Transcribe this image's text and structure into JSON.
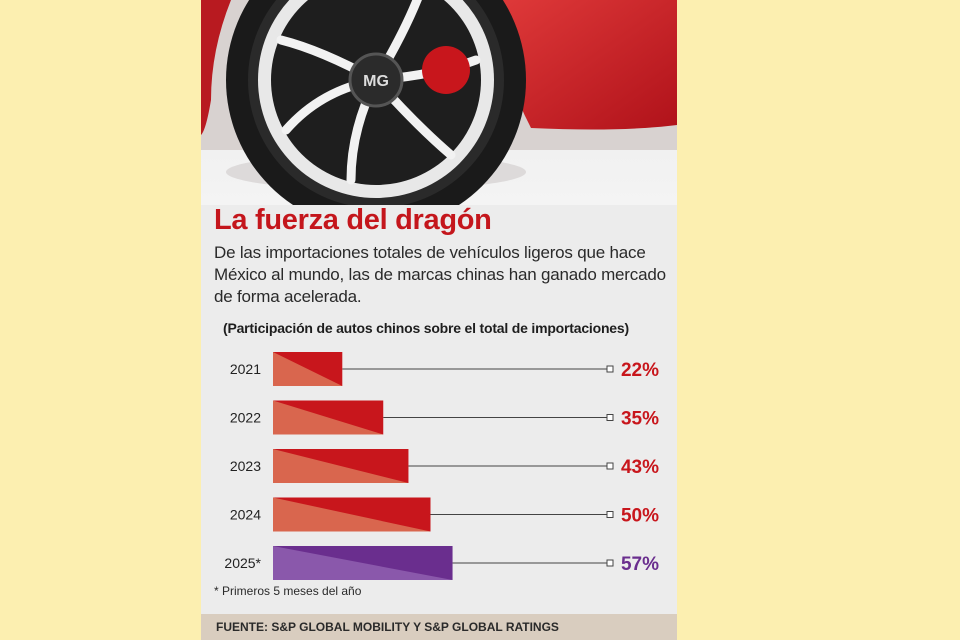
{
  "article": {
    "title": "La fuerza del dragón",
    "subtitle": "De las importaciones totales de vehículos ligeros que hace México al mundo, las de marcas chinas han ganado mercado de forma acelerada.",
    "chart_caption": "(Participación de autos chinos sobre el total de importaciones)",
    "footnote": "* Primeros 5 meses del año",
    "source": "FUENTE: S&P GLOBAL MOBILITY Y S&P GLOBAL RATINGS"
  },
  "photo": {
    "badge_text": "MG"
  },
  "colors": {
    "page_background": "#fcefb0",
    "panel_background": "#ececec",
    "title_red": "#c4161c",
    "bar_red": "#c8161c",
    "bar_red_light": "#d9664e",
    "bar_purple": "#6a2e8e",
    "bar_purple_light": "#8a58ab",
    "source_band": "#d9cdbf"
  },
  "chart_data": {
    "type": "bar",
    "orientation": "horizontal",
    "categories": [
      "2021",
      "2022",
      "2023",
      "2024",
      "2025*"
    ],
    "values": [
      22,
      35,
      43,
      50,
      57
    ],
    "value_labels": [
      "22%",
      "35%",
      "43%",
      "50%",
      "57%"
    ],
    "xlim": [
      0,
      100
    ],
    "highlight_category": "2025*",
    "grid": false,
    "legend": "none"
  }
}
